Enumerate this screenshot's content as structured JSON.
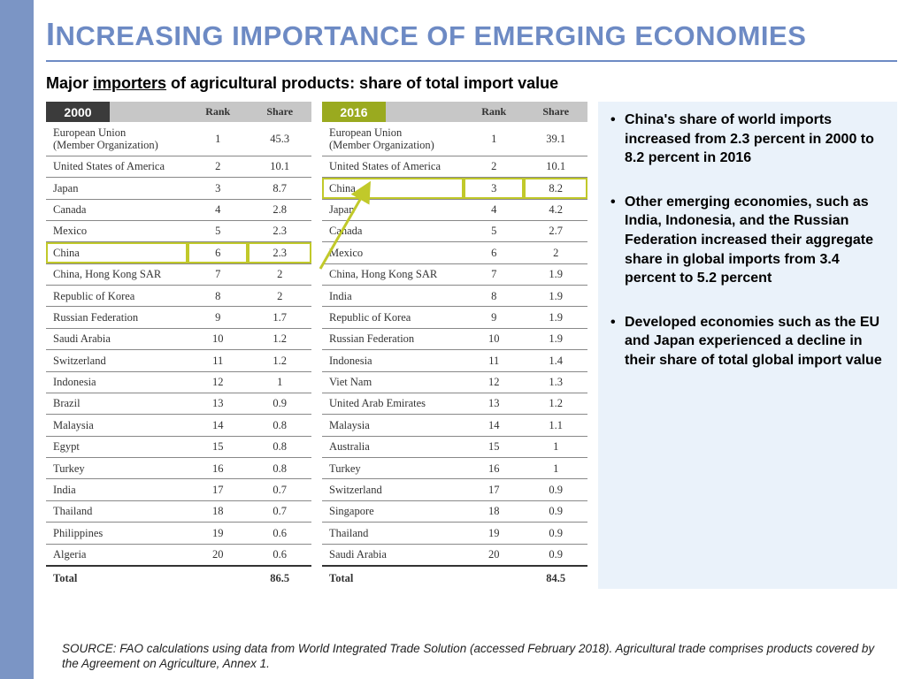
{
  "title_first": "I",
  "title_rest": "NCREASING IMPORTANCE OF EMERGING ECONOMIES",
  "subtitle_pre": "Major ",
  "subtitle_underline": "importers",
  "subtitle_post": " of agricultural products: share of total import value",
  "headers": {
    "rank": "Rank",
    "share": "Share"
  },
  "table2000": {
    "year": "2000",
    "rows": [
      {
        "name": "European Union\n(Member Organization)",
        "rank": "1",
        "share": "45.3"
      },
      {
        "name": "United States of America",
        "rank": "2",
        "share": "10.1"
      },
      {
        "name": "Japan",
        "rank": "3",
        "share": "8.7"
      },
      {
        "name": "Canada",
        "rank": "4",
        "share": "2.8"
      },
      {
        "name": "Mexico",
        "rank": "5",
        "share": "2.3"
      },
      {
        "name": "China",
        "rank": "6",
        "share": "2.3",
        "highlight": true
      },
      {
        "name": "China, Hong Kong SAR",
        "rank": "7",
        "share": "2"
      },
      {
        "name": "Republic of Korea",
        "rank": "8",
        "share": "2"
      },
      {
        "name": "Russian Federation",
        "rank": "9",
        "share": "1.7"
      },
      {
        "name": "Saudi Arabia",
        "rank": "10",
        "share": "1.2"
      },
      {
        "name": "Switzerland",
        "rank": "11",
        "share": "1.2"
      },
      {
        "name": "Indonesia",
        "rank": "12",
        "share": "1"
      },
      {
        "name": "Brazil",
        "rank": "13",
        "share": "0.9"
      },
      {
        "name": "Malaysia",
        "rank": "14",
        "share": "0.8"
      },
      {
        "name": "Egypt",
        "rank": "15",
        "share": "0.8"
      },
      {
        "name": "Turkey",
        "rank": "16",
        "share": "0.8"
      },
      {
        "name": "India",
        "rank": "17",
        "share": "0.7"
      },
      {
        "name": "Thailand",
        "rank": "18",
        "share": "0.7"
      },
      {
        "name": "Philippines",
        "rank": "19",
        "share": "0.6"
      },
      {
        "name": "Algeria",
        "rank": "20",
        "share": "0.6"
      }
    ],
    "total_label": "Total",
    "total_value": "86.5"
  },
  "table2016": {
    "year": "2016",
    "rows": [
      {
        "name": "European Union\n(Member Organization)",
        "rank": "1",
        "share": "39.1"
      },
      {
        "name": "United States of America",
        "rank": "2",
        "share": "10.1"
      },
      {
        "name": "China",
        "rank": "3",
        "share": "8.2",
        "highlight": true
      },
      {
        "name": "Japan",
        "rank": "4",
        "share": "4.2"
      },
      {
        "name": "Canada",
        "rank": "5",
        "share": "2.7"
      },
      {
        "name": "Mexico",
        "rank": "6",
        "share": "2"
      },
      {
        "name": "China, Hong Kong SAR",
        "rank": "7",
        "share": "1.9"
      },
      {
        "name": "India",
        "rank": "8",
        "share": "1.9"
      },
      {
        "name": "Republic of Korea",
        "rank": "9",
        "share": "1.9"
      },
      {
        "name": "Russian Federation",
        "rank": "10",
        "share": "1.9"
      },
      {
        "name": "Indonesia",
        "rank": "11",
        "share": "1.4"
      },
      {
        "name": "Viet Nam",
        "rank": "12",
        "share": "1.3"
      },
      {
        "name": "United Arab Emirates",
        "rank": "13",
        "share": "1.2"
      },
      {
        "name": "Malaysia",
        "rank": "14",
        "share": "1.1"
      },
      {
        "name": "Australia",
        "rank": "15",
        "share": "1"
      },
      {
        "name": "Turkey",
        "rank": "16",
        "share": "1"
      },
      {
        "name": "Switzerland",
        "rank": "17",
        "share": "0.9"
      },
      {
        "name": "Singapore",
        "rank": "18",
        "share": "0.9"
      },
      {
        "name": "Thailand",
        "rank": "19",
        "share": "0.9"
      },
      {
        "name": "Saudi Arabia",
        "rank": "20",
        "share": "0.9"
      }
    ],
    "total_label": "Total",
    "total_value": "84.5"
  },
  "bullets": [
    "China's share of world imports increased from 2.3 percent in 2000 to 8.2 percent in 2016",
    "Other emerging economies, such as India, Indonesia, and the Russian Federation increased their aggregate share in global imports from 3.4 percent to 5.2 percent",
    "Developed economies such as the EU and Japan experienced a decline in their share of total global import value"
  ],
  "source": "SOURCE: FAO calculations using data from World Integrated Trade Solution (accessed February 2018). Agricultural trade comprises products covered by the Agreement on Agriculture, Annex 1.",
  "colors": {
    "leftbar": "#7b95c5",
    "title": "#6d8ac4",
    "year2000": "#3b3b3b",
    "year2016": "#9aaa1f",
    "highlight": "#c1c92a",
    "bulletsbg": "#eaf2fa"
  }
}
